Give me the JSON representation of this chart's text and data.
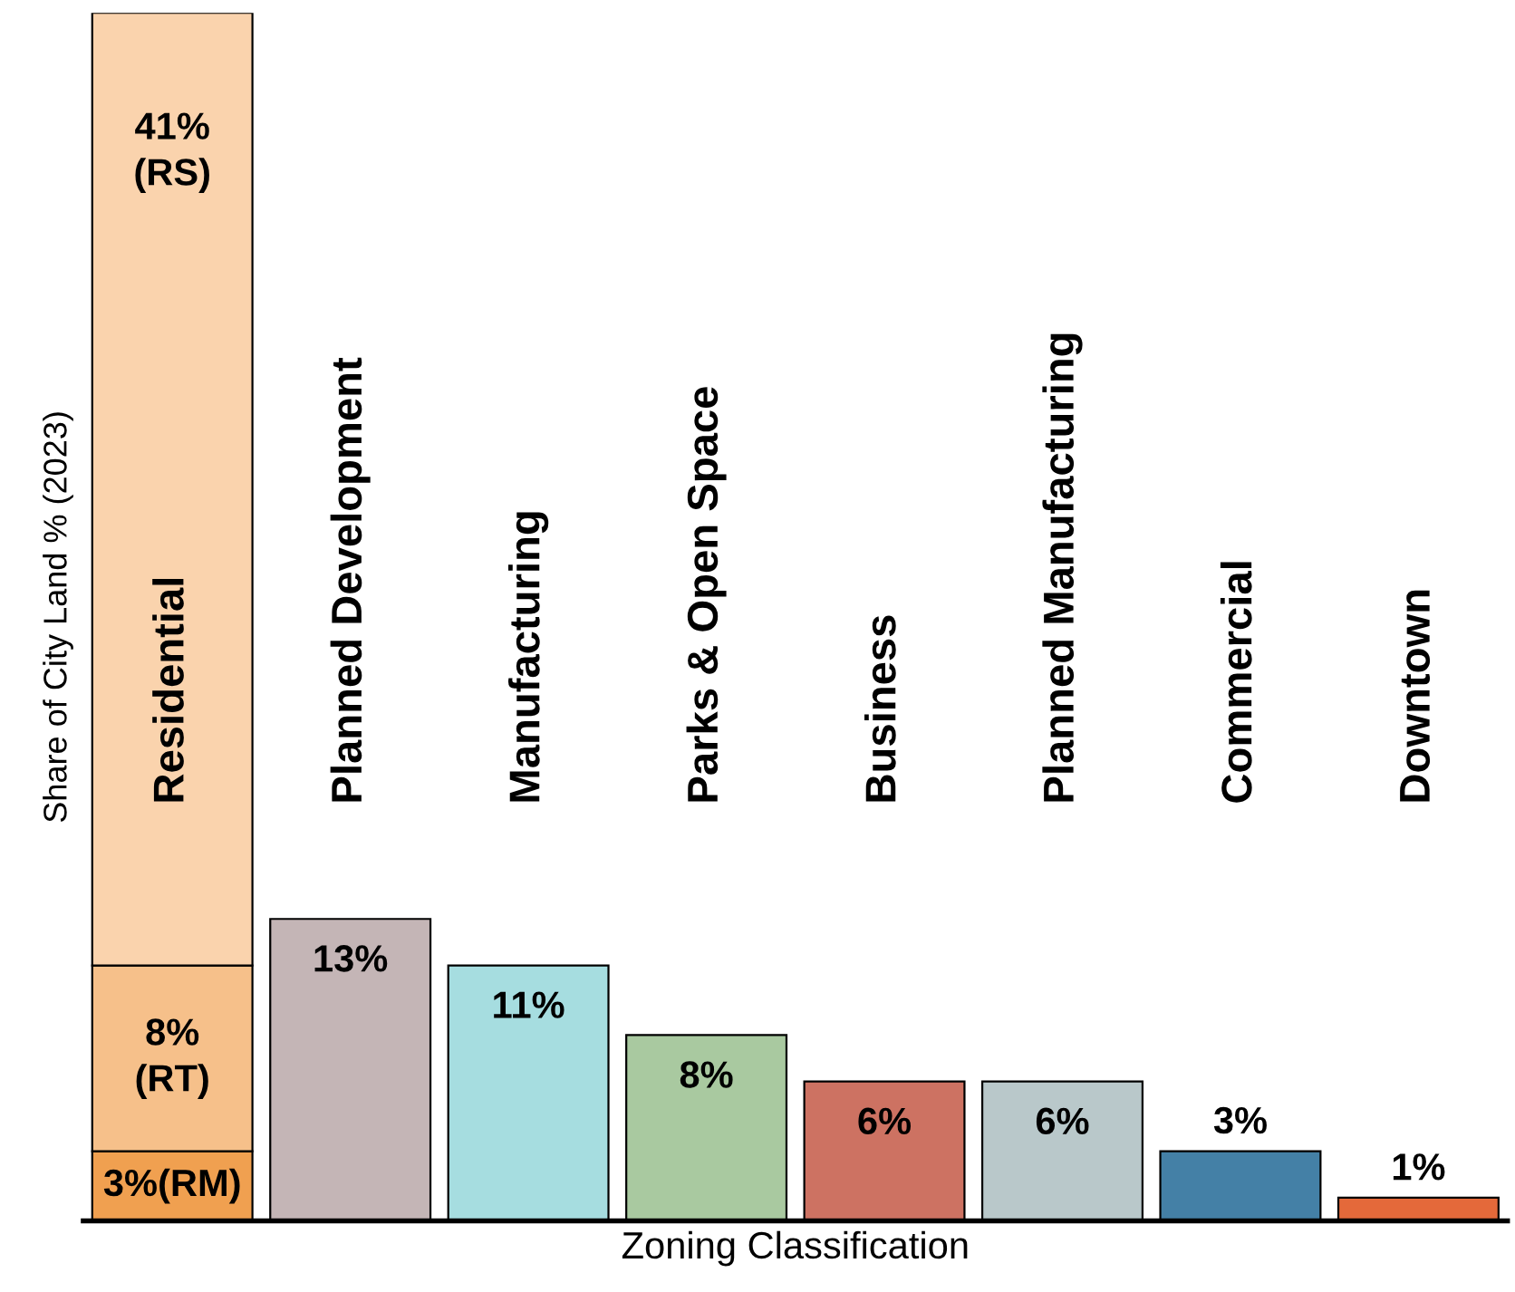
{
  "chart_data": {
    "type": "bar",
    "xlabel": "Zoning Classification",
    "ylabel": "Share of City Land % (2023)",
    "stacked": true,
    "categories": [
      "Residential",
      "Planned Development",
      "Manufacturing",
      "Parks & Open Space",
      "Business",
      "Planned Manufacturing",
      "Commercial",
      "Downtown"
    ],
    "series": [
      {
        "colors": [
          "#f0a050",
          "#c4b5b6",
          "#a6dde0",
          "#a9c9a0",
          "#cd7262",
          "#b9c8ca",
          "#4480a6",
          "#e4693a"
        ],
        "values": [
          3,
          13,
          11,
          8,
          6,
          6,
          3,
          1
        ],
        "value_labels": [
          "3%(RM)",
          "13%",
          "11%",
          "8%",
          "6%",
          "6%",
          "3%",
          "1%"
        ]
      },
      {
        "color": "#f6c08a",
        "values": [
          8,
          null,
          null,
          null,
          null,
          null,
          null,
          null
        ],
        "value_labels": [
          "8%\n(RT)",
          null,
          null,
          null,
          null,
          null,
          null,
          null
        ]
      },
      {
        "color": "#fad3ad",
        "values": [
          41,
          null,
          null,
          null,
          null,
          null,
          null,
          null
        ],
        "value_labels": [
          "41%\n(RS)",
          null,
          null,
          null,
          null,
          null,
          null,
          null
        ]
      }
    ]
  }
}
